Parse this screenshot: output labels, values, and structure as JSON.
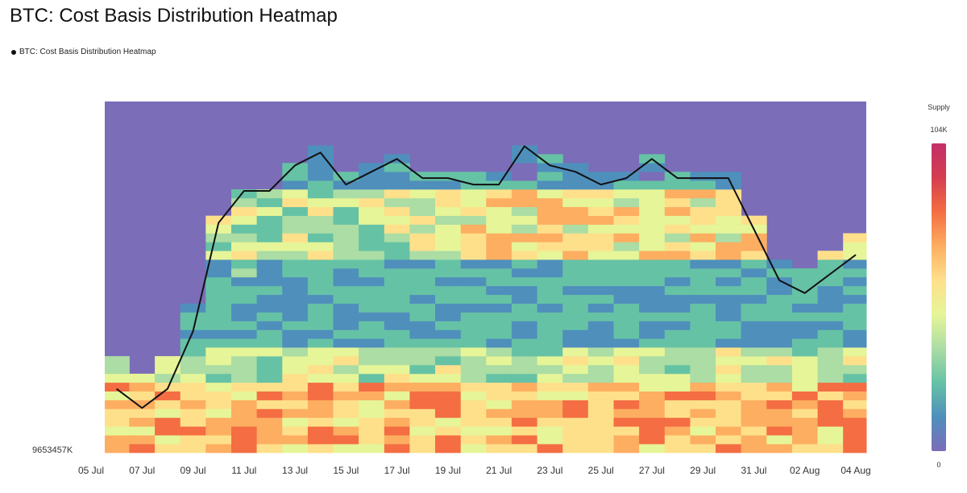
{
  "page": {
    "title": "BTC: Cost Basis Distribution Heatmap",
    "legend_label": "BTC: Cost Basis Distribution Heatmap"
  },
  "colorbar": {
    "title": "Supply",
    "max_label": "104K",
    "min_label": "0",
    "colors": [
      "#7b6db8",
      "#4f8fbc",
      "#66c2a5",
      "#abdda4",
      "#e6f598",
      "#fee08b",
      "#fdae61",
      "#f46d43",
      "#d53e4f",
      "#c2306a"
    ]
  },
  "chart_data": {
    "type": "heatmap",
    "title": "BTC: Cost Basis Distribution Heatmap",
    "x_tick_labels": [
      "05 Jul",
      "07 Jul",
      "09 Jul",
      "11 Jul",
      "13 Jul",
      "15 Jul",
      "17 Jul",
      "19 Jul",
      "21 Jul",
      "23 Jul",
      "25 Jul",
      "27 Jul",
      "29 Jul",
      "31 Jul",
      "02 Aug",
      "04 Aug"
    ],
    "y_min_label": "9653457K",
    "background_color": "#7b6db8",
    "series": [
      {
        "name": "BTC: Cost Basis Distribution Heatmap",
        "type": "line",
        "color": "#111111",
        "x": [
          "06 Jul",
          "07 Jul",
          "08 Jul",
          "09 Jul",
          "10 Jul",
          "11 Jul",
          "12 Jul",
          "13 Jul",
          "14 Jul",
          "15 Jul",
          "16 Jul",
          "17 Jul",
          "18 Jul",
          "19 Jul",
          "20 Jul",
          "21 Jul",
          "22 Jul",
          "23 Jul",
          "24 Jul",
          "25 Jul",
          "26 Jul",
          "27 Jul",
          "28 Jul",
          "29 Jul",
          "30 Jul",
          "31 Jul",
          "01 Aug",
          "02 Aug",
          "03 Aug",
          "04 Aug"
        ],
        "y": [
          0.1,
          0.07,
          0.1,
          0.19,
          0.36,
          0.41,
          0.41,
          0.45,
          0.47,
          0.42,
          0.44,
          0.46,
          0.43,
          0.43,
          0.42,
          0.42,
          0.48,
          0.45,
          0.44,
          0.42,
          0.43,
          0.46,
          0.43,
          0.43,
          0.43,
          0.35,
          0.27,
          0.25,
          0.28,
          0.31
        ],
        "y_unit": "relative (no price labels shown)"
      }
    ],
    "heatmap": {
      "columns_per_day": 1,
      "rows": 40,
      "description_bands": [
        {
          "from_row": 0,
          "to_row": 6,
          "level": 0.55
        },
        {
          "from_row": 6,
          "to_row": 14,
          "level": 0.35
        },
        {
          "from_row": 14,
          "to_row": 28,
          "level": 0.22
        },
        {
          "from_row": 28,
          "to_row": 34,
          "level": 0.45
        },
        {
          "from_row": 34,
          "to_row": 40,
          "level": 0.18
        }
      ]
    }
  }
}
